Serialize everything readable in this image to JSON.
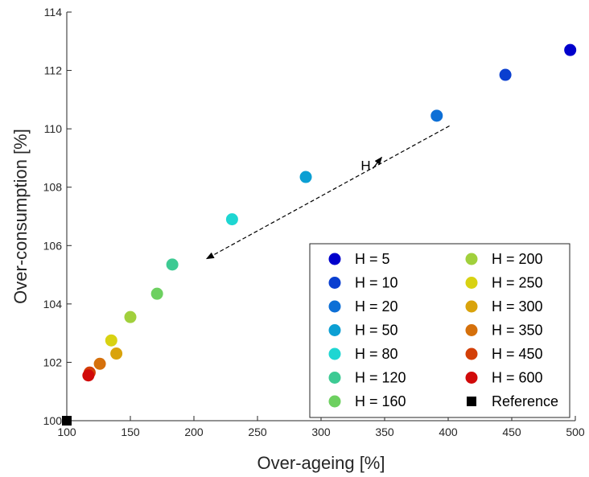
{
  "chart_data": {
    "type": "scatter",
    "title": "",
    "xlabel": "Over-ageing [%]",
    "ylabel": "Over-consumption [%]",
    "xlim": [
      100,
      500
    ],
    "ylim": [
      100,
      114
    ],
    "xticks": [
      100,
      150,
      200,
      250,
      300,
      350,
      400,
      450,
      500
    ],
    "yticks": [
      100,
      102,
      104,
      106,
      108,
      110,
      112,
      114
    ],
    "grid": false,
    "legend_position": "bottom-right",
    "series": [
      {
        "name": "H = 5",
        "color": "#0000cc",
        "x": [
          496
        ],
        "y": [
          112.7
        ]
      },
      {
        "name": "H = 10",
        "color": "#0a3fd0",
        "x": [
          445
        ],
        "y": [
          111.85
        ]
      },
      {
        "name": "H = 20",
        "color": "#0d6fd6",
        "x": [
          391
        ],
        "y": [
          110.45
        ]
      },
      {
        "name": "H = 50",
        "color": "#0c9fd3",
        "x": [
          288
        ],
        "y": [
          108.35
        ]
      },
      {
        "name": "H = 80",
        "color": "#1ed6d2",
        "x": [
          230
        ],
        "y": [
          106.9
        ]
      },
      {
        "name": "H = 120",
        "color": "#3dca93",
        "x": [
          183
        ],
        "y": [
          105.35
        ]
      },
      {
        "name": "H = 160",
        "color": "#6dd060",
        "x": [
          171
        ],
        "y": [
          104.35
        ]
      },
      {
        "name": "H = 200",
        "color": "#a1d03c",
        "x": [
          150
        ],
        "y": [
          103.55
        ]
      },
      {
        "name": "H = 250",
        "color": "#d8d212",
        "x": [
          135
        ],
        "y": [
          102.75
        ]
      },
      {
        "name": "H = 300",
        "color": "#d9a30c",
        "x": [
          139
        ],
        "y": [
          102.3
        ]
      },
      {
        "name": "H = 350",
        "color": "#d5700b",
        "x": [
          126
        ],
        "y": [
          101.95
        ]
      },
      {
        "name": "H = 450",
        "color": "#d33f07",
        "x": [
          118
        ],
        "y": [
          101.65
        ]
      },
      {
        "name": "H = 600",
        "color": "#d10a0a",
        "x": [
          117
        ],
        "y": [
          101.55
        ]
      },
      {
        "name": "Reference",
        "color": "#000000",
        "marker": "square",
        "x": [
          100
        ],
        "y": [
          100
        ]
      }
    ],
    "annotations": [
      {
        "text": "H",
        "type": "arrow",
        "style": "dashed",
        "from": [
          401,
          110.1
        ],
        "to": [
          210,
          105.55
        ]
      }
    ]
  }
}
